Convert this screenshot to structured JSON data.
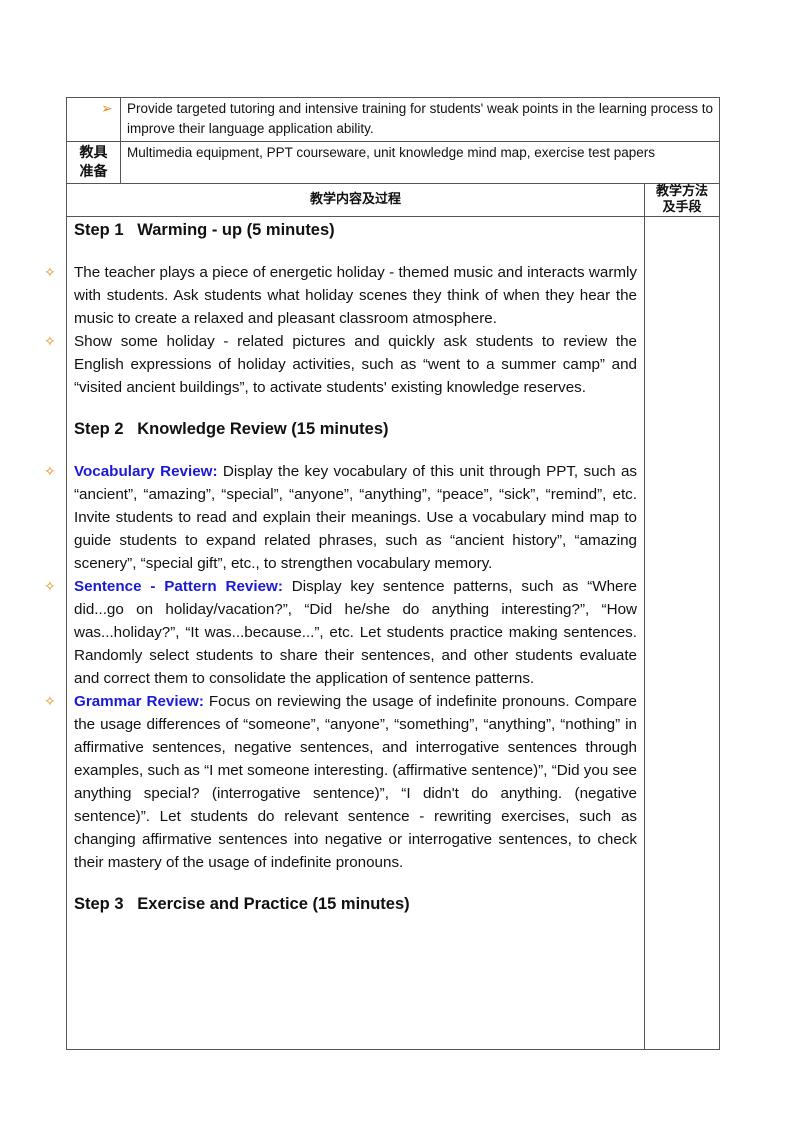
{
  "table": {
    "objective_bullet": "Provide targeted tutoring and intensive training for students' weak points in the learning process to improve their language application ability.",
    "tools_label": "教具准备",
    "tools": "Multimedia equipment, PPT courseware, unit knowledge mind map, exercise test papers",
    "header_content": "教学内容及过程",
    "header_method": "教学方法及手段",
    "steps": [
      {
        "title": "Step 1   Warming - up (5 minutes)",
        "items": [
          {
            "text": "The teacher plays a piece of energetic holiday - themed music and interacts warmly with students. Ask students what holiday scenes they think of when they hear the music to create a relaxed and pleasant classroom atmosphere."
          },
          {
            "text": "Show some holiday - related pictures and quickly ask students to review the English expressions of holiday activities, such as “went to a summer camp” and “visited ancient buildings”, to activate students' existing knowledge reserves."
          }
        ]
      },
      {
        "title": "Step 2   Knowledge Review (15 minutes)",
        "items": [
          {
            "label": "Vocabulary Review:",
            "text": "Display the key vocabulary of this unit through PPT, such as “ancient”, “amazing”, “special”, “anyone”, “anything”, “peace”, “sick”, “remind”, etc. Invite students to read and explain their meanings. Use a vocabulary mind map to guide students to expand related phrases, such as “ancient history”, “amazing scenery”, “special gift”, etc., to strengthen vocabulary memory."
          },
          {
            "label": "Sentence - Pattern Review:",
            "text": "Display key sentence patterns, such as “Where did...go on holiday/vacation?”, “Did he/she do anything interesting?”, “How was...holiday?”, “It was...because...”, etc. Let students practice making sentences. Randomly select students to share their sentences, and other students evaluate and correct them to consolidate the application of sentence patterns."
          },
          {
            "label": "Grammar Review:",
            "text": "Focus on reviewing the usage of indefinite pronouns. Compare the usage differences of “someone”, “anyone”, “something”, “anything”, “nothing” in affirmative sentences, negative sentences, and interrogative sentences through examples, such as “I met someone interesting. (affirmative sentence)”, “Did you see anything special? (interrogative sentence)”, “I didn't do anything. (negative sentence)”. Let students do relevant sentence - rewriting exercises, such as changing affirmative sentences into negative or interrogative sentences, to check their mastery of the usage of indefinite pronouns."
          }
        ]
      },
      {
        "title": "Step 3   Exercise and Practice (15 minutes)",
        "items": []
      }
    ]
  }
}
